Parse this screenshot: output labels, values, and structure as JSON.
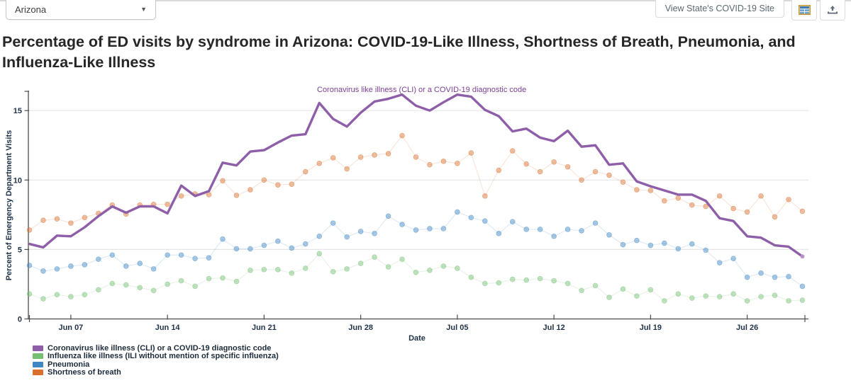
{
  "toolbar": {
    "state_selector_value": "Arizona",
    "view_site_button": "View State's COVID-19 Site"
  },
  "page_title": "Percentage of ED visits by syndrome in Arizona: COVID-19-Like Illness, Shortness of Breath, Pneumonia, and Influenza-Like Illness",
  "chart_data": {
    "type": "line",
    "annotation": "Coronavirus like illness (CLI) or a COVID-19 diagnostic code",
    "xlabel": "Date",
    "ylabel": "Percent of Emergency Department Visits",
    "ylim": [
      0,
      16.5
    ],
    "y_ticks": [
      0,
      5,
      10,
      15
    ],
    "x_tick_labels": [
      "Jun 07",
      "Jun 14",
      "Jun 21",
      "Jun 28",
      "Jul 05",
      "Jul 12",
      "Jul 19",
      "Jul 26"
    ],
    "x_tick_days": [
      3,
      10,
      17,
      24,
      31,
      38,
      45,
      52
    ],
    "start_date": "Jun 04",
    "end_date": "Jul 30",
    "grid": true,
    "legend_position": "bottom-left",
    "series": [
      {
        "name": "Coronavirus like illness (CLI) or a COVID-19 diagnostic code",
        "color": "#8e5fa8",
        "style": "line",
        "values": [
          5.4,
          5.15,
          6.0,
          5.95,
          6.6,
          7.4,
          8.1,
          7.65,
          8.1,
          8.1,
          7.6,
          9.6,
          8.85,
          9.2,
          11.25,
          11.05,
          12.05,
          12.15,
          12.7,
          13.2,
          13.3,
          15.55,
          14.4,
          13.85,
          14.85,
          15.65,
          15.85,
          16.15,
          15.35,
          15.0,
          15.6,
          16.15,
          16.0,
          15.05,
          14.6,
          13.5,
          13.7,
          13.05,
          12.8,
          13.55,
          12.4,
          12.5,
          11.1,
          11.2,
          9.9,
          9.55,
          9.25,
          8.95,
          8.95,
          8.5,
          7.25,
          7.05,
          5.95,
          5.85,
          5.3,
          5.2,
          4.5
        ]
      },
      {
        "name": "Influenza like illness (ILI without mention of specific influenza)",
        "color": "#74bf72",
        "style": "dots",
        "values": [
          1.8,
          1.45,
          1.75,
          1.6,
          1.75,
          2.1,
          2.55,
          2.45,
          2.25,
          2.05,
          2.5,
          2.75,
          2.35,
          2.9,
          2.95,
          2.7,
          3.5,
          3.55,
          3.55,
          3.3,
          3.65,
          4.7,
          3.4,
          3.6,
          4.0,
          4.45,
          3.75,
          4.3,
          3.35,
          3.5,
          3.8,
          3.65,
          3.0,
          2.55,
          2.6,
          2.85,
          2.8,
          2.9,
          2.75,
          2.55,
          2.05,
          2.4,
          1.55,
          2.15,
          1.65,
          2.1,
          1.3,
          1.8,
          1.5,
          1.65,
          1.6,
          1.8,
          1.3,
          1.6,
          1.7,
          1.3,
          1.35
        ]
      },
      {
        "name": "Pneumonia",
        "color": "#3f87c4",
        "style": "dots",
        "values": [
          3.85,
          3.45,
          3.6,
          3.8,
          3.9,
          4.3,
          4.6,
          3.8,
          4.0,
          3.6,
          4.6,
          4.6,
          4.35,
          4.4,
          5.75,
          5.05,
          5.05,
          5.3,
          5.6,
          5.1,
          5.4,
          5.95,
          6.9,
          5.9,
          6.3,
          6.15,
          7.4,
          6.8,
          6.4,
          6.5,
          6.5,
          7.7,
          7.3,
          7.05,
          6.15,
          7.0,
          6.45,
          6.45,
          5.95,
          6.45,
          6.35,
          6.9,
          6.05,
          5.35,
          5.65,
          5.3,
          5.45,
          5.05,
          5.4,
          4.95,
          4.05,
          4.35,
          3.0,
          3.3,
          3.0,
          3.05,
          2.35
        ]
      },
      {
        "name": "Shortness of breath",
        "color": "#d9702e",
        "style": "dots",
        "values": [
          6.4,
          7.1,
          7.2,
          6.9,
          7.3,
          7.6,
          8.2,
          7.55,
          8.2,
          8.25,
          8.25,
          8.85,
          9.0,
          8.95,
          9.95,
          8.9,
          9.3,
          10.0,
          9.65,
          9.7,
          10.6,
          11.2,
          11.6,
          10.8,
          11.65,
          11.8,
          11.9,
          13.2,
          11.65,
          11.1,
          11.35,
          11.2,
          11.95,
          8.85,
          10.7,
          12.1,
          11.15,
          10.6,
          11.3,
          10.95,
          10.0,
          10.6,
          10.35,
          9.85,
          9.3,
          9.25,
          8.5,
          8.7,
          8.2,
          8.1,
          8.85,
          7.95,
          7.7,
          8.85,
          7.35,
          8.6,
          7.75
        ]
      }
    ]
  }
}
